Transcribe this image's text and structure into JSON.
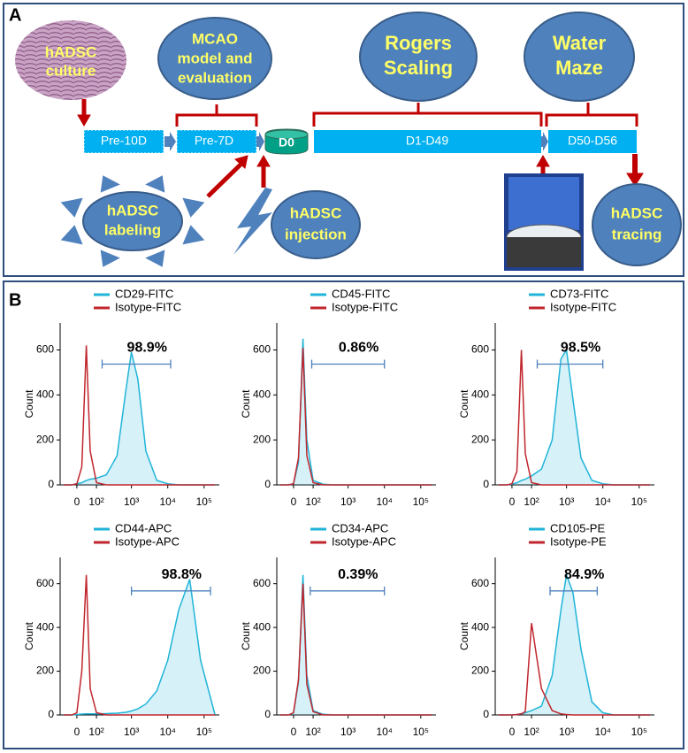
{
  "panel_a": {
    "label": "A",
    "culture": [
      "hADSC",
      "culture"
    ],
    "mcao": [
      "MCAO",
      "model and",
      "evaluation"
    ],
    "rogers": [
      "Rogers",
      "Scaling"
    ],
    "water_maze": [
      "Water",
      "Maze"
    ],
    "timeline": [
      "Pre-10D",
      "Pre-7D",
      "D0",
      "D1-D49",
      "D50-D56"
    ],
    "labeling": [
      "hADSC",
      "labeling"
    ],
    "injection": [
      "hADSC",
      "injection"
    ],
    "tracing": [
      "hADSC",
      "tracing"
    ]
  },
  "panel_b": {
    "label": "B"
  },
  "chart_data": [
    {
      "type": "histogram-curve",
      "xscale": "asinh",
      "xlim": [
        -80,
        262144
      ],
      "ylim": [
        0,
        720
      ],
      "ylabel": "Count",
      "xticks": [
        {
          "value": 0,
          "label": "0"
        },
        {
          "value": 100,
          "label": "10²"
        },
        {
          "value": 1000,
          "label": "10³"
        },
        {
          "value": 10000,
          "label": "10⁴"
        },
        {
          "value": 100000,
          "label": "10⁵"
        }
      ],
      "yticks": [
        0,
        200,
        400,
        600
      ],
      "x": [
        -60,
        -20,
        0,
        20,
        40,
        60,
        100,
        200,
        400,
        700,
        1000,
        1500,
        2500,
        5000,
        10000,
        20000,
        40000,
        80000,
        200000
      ],
      "series": [
        {
          "name": "CD29-FITC",
          "color": "#1fb4d8",
          "filled": true,
          "values": [
            0,
            0,
            5,
            10,
            20,
            25,
            30,
            45,
            130,
            420,
            590,
            470,
            150,
            20,
            5,
            0,
            0,
            0,
            0
          ]
        },
        {
          "name": "Isotype-FITC",
          "color": "#c0262d",
          "filled": false,
          "values": [
            0,
            0,
            5,
            80,
            620,
            150,
            10,
            0,
            0,
            0,
            0,
            0,
            0,
            0,
            0,
            0,
            0,
            0,
            0
          ]
        }
      ],
      "gate": {
        "range": [
          150,
          12000
        ],
        "y": 537,
        "label": "98.9%"
      }
    },
    {
      "type": "histogram-curve",
      "xscale": "asinh",
      "xlim": [
        -80,
        262144
      ],
      "ylim": [
        0,
        720
      ],
      "ylabel": "Count",
      "xticks": [
        {
          "value": 0,
          "label": "0"
        },
        {
          "value": 100,
          "label": "10²"
        },
        {
          "value": 1000,
          "label": "10³"
        },
        {
          "value": 10000,
          "label": "10⁴"
        },
        {
          "value": 100000,
          "label": "10⁵"
        }
      ],
      "yticks": [
        0,
        200,
        400,
        600
      ],
      "x": [
        -60,
        -20,
        0,
        20,
        40,
        60,
        100,
        200,
        400,
        700,
        1000,
        1500,
        2500,
        5000,
        10000,
        20000,
        40000,
        80000,
        200000
      ],
      "series": [
        {
          "name": "CD45-FITC",
          "color": "#1fb4d8",
          "filled": true,
          "values": [
            0,
            0,
            5,
            100,
            650,
            200,
            20,
            3,
            0,
            0,
            0,
            0,
            0,
            0,
            0,
            0,
            0,
            0,
            0
          ]
        },
        {
          "name": "Isotype-FITC",
          "color": "#c0262d",
          "filled": false,
          "values": [
            0,
            0,
            5,
            120,
            610,
            130,
            10,
            0,
            0,
            0,
            0,
            0,
            0,
            0,
            0,
            0,
            0,
            0,
            0
          ]
        }
      ],
      "gate": {
        "range": [
          90,
          10000
        ],
        "y": 537,
        "label": "0.86%"
      }
    },
    {
      "type": "histogram-curve",
      "xscale": "asinh",
      "xlim": [
        -80,
        262144
      ],
      "ylim": [
        0,
        720
      ],
      "ylabel": "Count",
      "xticks": [
        {
          "value": 0,
          "label": "0"
        },
        {
          "value": 100,
          "label": "10²"
        },
        {
          "value": 1000,
          "label": "10³"
        },
        {
          "value": 10000,
          "label": "10⁴"
        },
        {
          "value": 100000,
          "label": "10⁵"
        }
      ],
      "yticks": [
        0,
        200,
        400,
        600
      ],
      "x": [
        -60,
        -20,
        0,
        20,
        40,
        60,
        100,
        200,
        400,
        700,
        1000,
        1500,
        2500,
        5000,
        10000,
        20000,
        40000,
        80000,
        200000
      ],
      "series": [
        {
          "name": "CD73-FITC",
          "color": "#1fb4d8",
          "filled": true,
          "values": [
            0,
            0,
            3,
            10,
            20,
            25,
            40,
            70,
            200,
            560,
            600,
            380,
            120,
            20,
            5,
            0,
            0,
            0,
            0
          ]
        },
        {
          "name": "Isotype-FITC",
          "color": "#c0262d",
          "filled": false,
          "values": [
            0,
            0,
            5,
            60,
            600,
            140,
            10,
            0,
            0,
            0,
            0,
            0,
            0,
            0,
            0,
            0,
            0,
            0,
            0
          ]
        }
      ],
      "gate": {
        "range": [
          150,
          10000
        ],
        "y": 537,
        "label": "98.5%"
      }
    },
    {
      "type": "histogram-curve",
      "xscale": "asinh",
      "xlim": [
        -80,
        262144
      ],
      "ylim": [
        0,
        720
      ],
      "ylabel": "Count",
      "xticks": [
        {
          "value": 0,
          "label": "0"
        },
        {
          "value": 100,
          "label": "10²"
        },
        {
          "value": 1000,
          "label": "10³"
        },
        {
          "value": 10000,
          "label": "10⁴"
        },
        {
          "value": 100000,
          "label": "10⁵"
        }
      ],
      "yticks": [
        0,
        200,
        400,
        600
      ],
      "x": [
        -60,
        -20,
        0,
        20,
        40,
        60,
        100,
        200,
        400,
        700,
        1000,
        1500,
        2500,
        5000,
        10000,
        20000,
        40000,
        80000,
        200000
      ],
      "series": [
        {
          "name": "CD44-APC",
          "color": "#1fb4d8",
          "filled": true,
          "values": [
            0,
            0,
            2,
            4,
            5,
            5,
            5,
            6,
            8,
            12,
            18,
            28,
            50,
            110,
            250,
            480,
            620,
            250,
            0
          ]
        },
        {
          "name": "Isotype-APC",
          "color": "#c0262d",
          "filled": false,
          "values": [
            0,
            0,
            10,
            200,
            640,
            120,
            10,
            0,
            0,
            0,
            0,
            0,
            0,
            0,
            0,
            0,
            0,
            0,
            0
          ]
        }
      ],
      "gate": {
        "range": [
          1000,
          150000
        ],
        "y": 567,
        "label": "98.8%"
      }
    },
    {
      "type": "histogram-curve",
      "xscale": "asinh",
      "xlim": [
        -80,
        262144
      ],
      "ylim": [
        0,
        720
      ],
      "ylabel": "Count",
      "xticks": [
        {
          "value": 0,
          "label": "0"
        },
        {
          "value": 100,
          "label": "10²"
        },
        {
          "value": 1000,
          "label": "10³"
        },
        {
          "value": 10000,
          "label": "10⁴"
        },
        {
          "value": 100000,
          "label": "10⁵"
        }
      ],
      "yticks": [
        0,
        200,
        400,
        600
      ],
      "x": [
        -60,
        -20,
        0,
        20,
        40,
        60,
        100,
        200,
        400,
        700,
        1000,
        1500,
        2500,
        5000,
        10000,
        20000,
        40000,
        80000,
        200000
      ],
      "series": [
        {
          "name": "CD34-APC",
          "color": "#1fb4d8",
          "filled": true,
          "values": [
            0,
            0,
            10,
            150,
            640,
            180,
            20,
            3,
            0,
            0,
            0,
            0,
            0,
            0,
            0,
            0,
            0,
            0,
            0
          ]
        },
        {
          "name": "Isotype-APC",
          "color": "#c0262d",
          "filled": false,
          "values": [
            0,
            0,
            10,
            160,
            600,
            140,
            15,
            0,
            0,
            0,
            0,
            0,
            0,
            0,
            0,
            0,
            0,
            0,
            0
          ]
        }
      ],
      "gate": {
        "range": [
          80,
          10000
        ],
        "y": 567,
        "label": "0.39%"
      }
    },
    {
      "type": "histogram-curve",
      "xscale": "asinh",
      "xlim": [
        -80,
        262144
      ],
      "ylim": [
        0,
        720
      ],
      "ylabel": "Count",
      "xticks": [
        {
          "value": 0,
          "label": "0"
        },
        {
          "value": 100,
          "label": "10²"
        },
        {
          "value": 1000,
          "label": "10³"
        },
        {
          "value": 10000,
          "label": "10⁴"
        },
        {
          "value": 100000,
          "label": "10⁵"
        }
      ],
      "yticks": [
        0,
        200,
        400,
        600
      ],
      "x": [
        -60,
        -20,
        0,
        20,
        40,
        60,
        100,
        200,
        400,
        700,
        1000,
        1500,
        2500,
        5000,
        10000,
        20000,
        40000,
        80000,
        200000
      ],
      "series": [
        {
          "name": "CD105-PE",
          "color": "#1fb4d8",
          "filled": true,
          "values": [
            0,
            0,
            0,
            2,
            5,
            10,
            20,
            40,
            180,
            480,
            640,
            560,
            300,
            60,
            10,
            0,
            0,
            0,
            0
          ]
        },
        {
          "name": "Isotype-PE",
          "color": "#c0262d",
          "filled": false,
          "values": [
            0,
            0,
            0,
            2,
            5,
            15,
            420,
            120,
            20,
            5,
            2,
            0,
            0,
            0,
            0,
            0,
            0,
            0,
            0
          ]
        }
      ],
      "gate": {
        "range": [
          350,
          7000
        ],
        "y": 567,
        "label": "84.9%"
      }
    }
  ]
}
